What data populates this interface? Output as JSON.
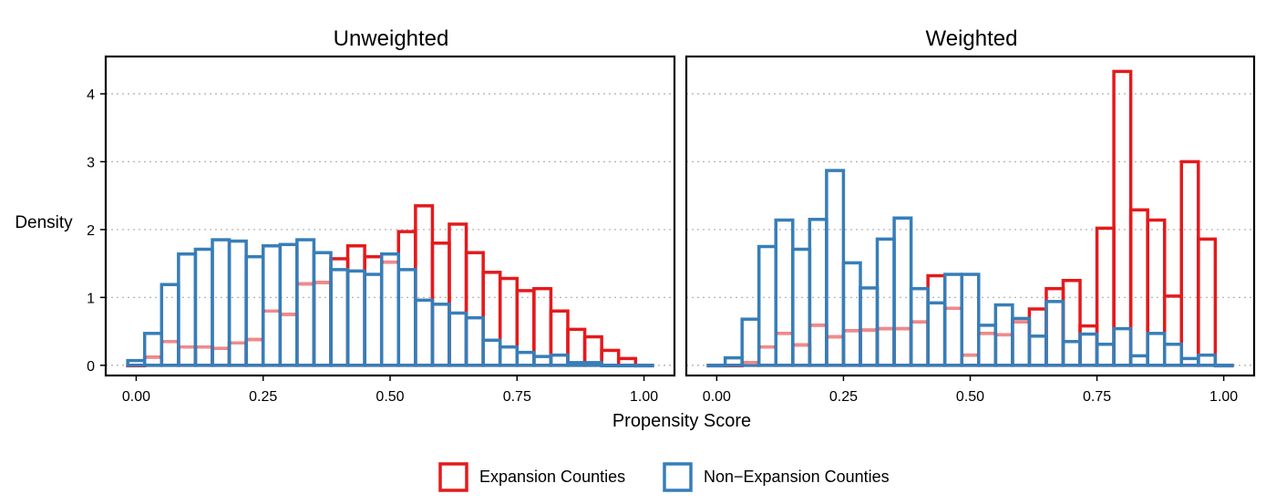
{
  "chart_data": {
    "type": "bar",
    "xlabel": "Propensity Score",
    "ylabel": "Density",
    "xlim": [
      -0.06,
      1.06
    ],
    "ylim": [
      -0.15,
      4.55
    ],
    "xticks": [
      "0.00",
      "0.25",
      "0.50",
      "0.75",
      "1.00"
    ],
    "yticks": [
      "0",
      "1",
      "2",
      "3",
      "4"
    ],
    "grid": "horizontal dotted",
    "legend_position": "bottom",
    "bin_width": 0.03333,
    "bin_centers": [
      0.0,
      0.0333,
      0.0667,
      0.1,
      0.1333,
      0.1667,
      0.2,
      0.2333,
      0.2667,
      0.3,
      0.3333,
      0.3667,
      0.4,
      0.4333,
      0.4667,
      0.5,
      0.5333,
      0.5667,
      0.6,
      0.6333,
      0.6667,
      0.7,
      0.7333,
      0.7667,
      0.8,
      0.8333,
      0.8667,
      0.9,
      0.9333,
      0.9667,
      1.0
    ],
    "series": [
      {
        "name": "Expansion Counties",
        "color": "#e41a1c"
      },
      {
        "name": "Non−Expansion Counties",
        "color": "#377eb8"
      }
    ],
    "panels": [
      {
        "title": "Unweighted",
        "expansion": [
          0.0,
          0.12,
          0.35,
          0.27,
          0.27,
          0.25,
          0.33,
          0.38,
          0.8,
          0.75,
          1.2,
          1.22,
          1.57,
          1.76,
          1.6,
          1.52,
          1.97,
          2.35,
          1.8,
          2.08,
          1.66,
          1.37,
          1.28,
          1.1,
          1.13,
          0.8,
          0.53,
          0.42,
          0.22,
          0.1,
          0.0
        ],
        "non_expansion": [
          0.07,
          0.47,
          1.19,
          1.64,
          1.71,
          1.85,
          1.83,
          1.6,
          1.76,
          1.78,
          1.85,
          1.66,
          1.41,
          1.39,
          1.34,
          1.64,
          1.41,
          0.96,
          0.9,
          0.77,
          0.7,
          0.37,
          0.27,
          0.19,
          0.13,
          0.15,
          0.04,
          0.04,
          0.0,
          0.0,
          0.0
        ]
      },
      {
        "title": "Weighted",
        "expansion": [
          0.0,
          0.0,
          0.04,
          0.27,
          0.47,
          0.3,
          0.59,
          0.42,
          0.51,
          0.52,
          0.54,
          0.54,
          0.64,
          1.32,
          0.84,
          0.15,
          0.47,
          0.45,
          0.64,
          0.83,
          1.13,
          1.25,
          0.58,
          2.02,
          4.33,
          2.29,
          2.14,
          1.02,
          3.0,
          1.86,
          0.0
        ],
        "non_expansion": [
          0.0,
          0.11,
          0.68,
          1.75,
          2.14,
          1.71,
          2.15,
          2.87,
          1.51,
          1.14,
          1.86,
          2.17,
          1.13,
          0.92,
          1.34,
          1.34,
          0.59,
          0.89,
          0.69,
          0.43,
          0.94,
          0.35,
          0.46,
          0.31,
          0.54,
          0.14,
          0.47,
          0.31,
          0.1,
          0.15,
          0.0
        ]
      }
    ]
  }
}
